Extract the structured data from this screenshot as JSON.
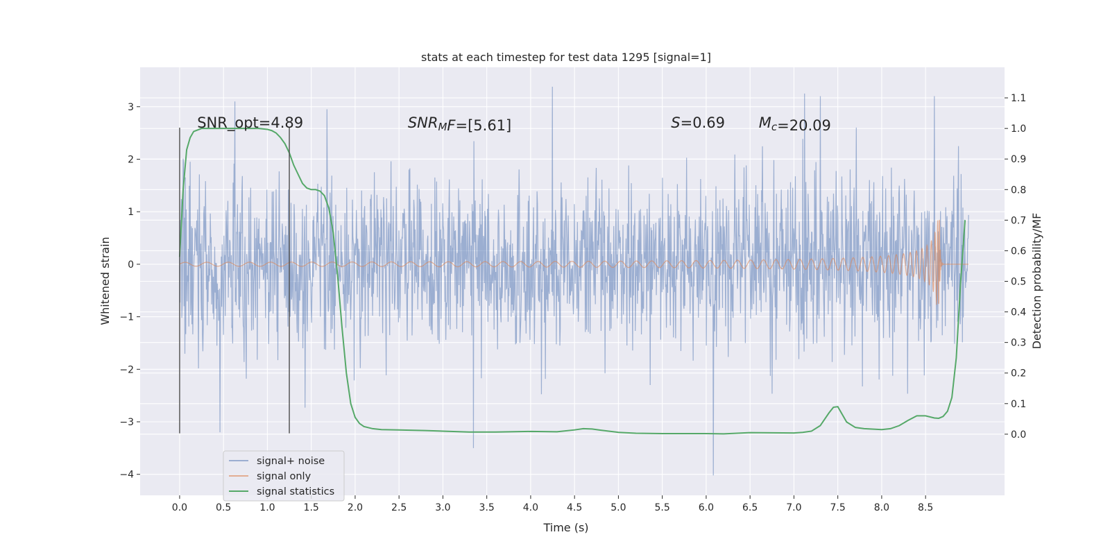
{
  "chart_data": {
    "type": "line",
    "title": "stats at each timestep for test data 1295 [signal=1]",
    "xlabel": "Time (s)",
    "ylabel": "Whitened strain",
    "y2label": "Detection probability/MF",
    "xlim": [
      -0.45,
      9.4
    ],
    "ylim": [
      -4.4,
      3.75
    ],
    "y2lim": [
      -0.2,
      1.2
    ],
    "x_ticks": [
      0.0,
      0.5,
      1.0,
      1.5,
      2.0,
      2.5,
      3.0,
      3.5,
      4.0,
      4.5,
      5.0,
      5.5,
      6.0,
      6.5,
      7.0,
      7.5,
      8.0,
      8.5
    ],
    "x_tick_labels": [
      "0.0",
      "0.5",
      "1.0",
      "1.5",
      "2.0",
      "2.5",
      "3.0",
      "3.5",
      "4.0",
      "4.5",
      "5.0",
      "5.5",
      "6.0",
      "6.5",
      "7.0",
      "7.5",
      "8.0",
      "8.5"
    ],
    "y_ticks": [
      -4,
      -3,
      -2,
      -1,
      0,
      1,
      2,
      3
    ],
    "y_tick_labels": [
      "−4",
      "−3",
      "−2",
      "−1",
      "0",
      "1",
      "2",
      "3"
    ],
    "y2_ticks": [
      0.0,
      0.1,
      0.2,
      0.3,
      0.4,
      0.5,
      0.6,
      0.7,
      0.8,
      0.9,
      1.0,
      1.1
    ],
    "y2_tick_labels": [
      "0.0",
      "0.1",
      "0.2",
      "0.3",
      "0.4",
      "0.5",
      "0.6",
      "0.7",
      "0.8",
      "0.9",
      "1.0",
      "1.1"
    ],
    "grid": true,
    "legend_position": "lower-left",
    "vertical_lines": [
      {
        "x": 0.0,
        "y": [
          -3.22,
          2.6
        ]
      },
      {
        "x": 1.25,
        "y": [
          -3.22,
          2.6
        ]
      }
    ],
    "annotations": [
      {
        "x": 0.2,
        "y": 2.6,
        "parts": [
          {
            "t": "SNR_opt=4.89"
          }
        ]
      },
      {
        "x": 2.6,
        "y": 2.6,
        "parts": [
          {
            "t": "SNR",
            "italic": true
          },
          {
            "t": "M",
            "italic": true,
            "sub": true
          },
          {
            "t": "F",
            "italic": true
          },
          {
            "t": "=[5.61]"
          }
        ]
      },
      {
        "x": 5.6,
        "y": 2.6,
        "parts": [
          {
            "t": "S",
            "italic": true
          },
          {
            "t": "=0.69"
          }
        ]
      },
      {
        "x": 6.6,
        "y": 2.6,
        "parts": [
          {
            "t": "M",
            "italic": true
          },
          {
            "t": "c",
            "italic": true,
            "sub": true
          },
          {
            "t": "=20.09"
          }
        ]
      }
    ],
    "series": [
      {
        "name": "signal+ noise",
        "color": "#4c72b0",
        "opacity": 0.5,
        "axis": "left",
        "kind": "noise",
        "x_range": [
          0.0,
          8.99
        ],
        "samples": 1800,
        "amplitude_sigma": 0.8,
        "y_min": -4.02,
        "y_max": 3.4,
        "extremes": [
          {
            "x": 0.46,
            "y": -3.2
          },
          {
            "x": 0.63,
            "y": 3.1
          },
          {
            "x": 1.68,
            "y": 2.95
          },
          {
            "x": 3.35,
            "y": -3.5
          },
          {
            "x": 4.25,
            "y": 3.38
          },
          {
            "x": 6.08,
            "y": -4.02
          },
          {
            "x": 7.12,
            "y": 3.25
          },
          {
            "x": 7.3,
            "y": 3.2
          },
          {
            "x": 8.6,
            "y": 3.2
          }
        ]
      },
      {
        "name": "signal only",
        "color": "#dd8452",
        "opacity": 0.6,
        "axis": "left",
        "kind": "chirp",
        "x_range": [
          0.0,
          8.99
        ],
        "merger_time": 8.66,
        "peak_amplitude": 0.85
      },
      {
        "name": "signal statistics",
        "color": "#55a868",
        "axis": "right",
        "kind": "line",
        "x": [
          0.0,
          0.04,
          0.08,
          0.12,
          0.16,
          0.25,
          0.35,
          0.5,
          0.7,
          0.9,
          1.0,
          1.05,
          1.1,
          1.15,
          1.2,
          1.25,
          1.3,
          1.35,
          1.4,
          1.45,
          1.5,
          1.55,
          1.6,
          1.65,
          1.7,
          1.75,
          1.8,
          1.85,
          1.9,
          1.95,
          2.0,
          2.05,
          2.1,
          2.2,
          2.3,
          2.5,
          2.8,
          3.0,
          3.3,
          3.6,
          4.0,
          4.3,
          4.5,
          4.6,
          4.7,
          4.8,
          5.0,
          5.2,
          5.5,
          6.0,
          6.2,
          6.5,
          7.0,
          7.1,
          7.2,
          7.3,
          7.4,
          7.45,
          7.5,
          7.55,
          7.6,
          7.7,
          7.8,
          8.0,
          8.1,
          8.2,
          8.3,
          8.4,
          8.5,
          8.6,
          8.65,
          8.7,
          8.75,
          8.8,
          8.85,
          8.9,
          8.95
        ],
        "y": [
          0.58,
          0.8,
          0.93,
          0.97,
          0.99,
          1.0,
          1.0,
          1.0,
          1.0,
          1.0,
          0.997,
          0.993,
          0.985,
          0.97,
          0.95,
          0.92,
          0.88,
          0.85,
          0.82,
          0.805,
          0.8,
          0.8,
          0.795,
          0.78,
          0.74,
          0.66,
          0.52,
          0.35,
          0.2,
          0.1,
          0.055,
          0.035,
          0.025,
          0.018,
          0.015,
          0.014,
          0.012,
          0.01,
          0.007,
          0.007,
          0.009,
          0.008,
          0.014,
          0.018,
          0.017,
          0.013,
          0.006,
          0.003,
          0.002,
          0.002,
          0.001,
          0.005,
          0.004,
          0.006,
          0.01,
          0.028,
          0.07,
          0.088,
          0.09,
          0.065,
          0.04,
          0.022,
          0.018,
          0.015,
          0.018,
          0.028,
          0.045,
          0.06,
          0.06,
          0.053,
          0.052,
          0.058,
          0.075,
          0.12,
          0.25,
          0.5,
          0.7
        ]
      }
    ]
  }
}
